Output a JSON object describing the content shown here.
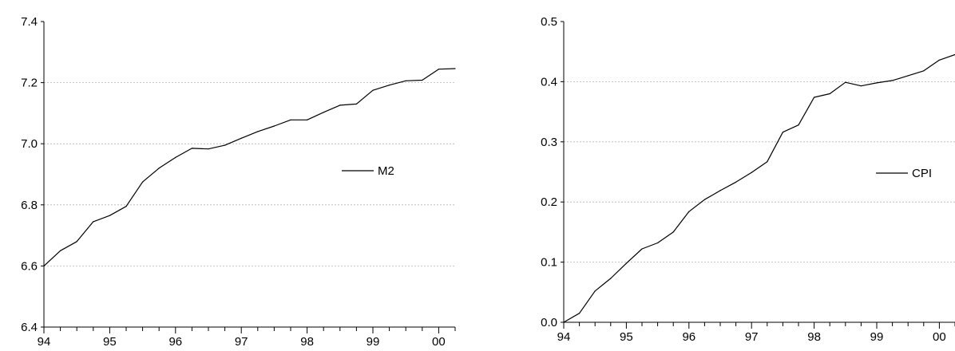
{
  "chart_data": [
    {
      "type": "line",
      "title": "",
      "xlabel": "",
      "ylabel": "",
      "x_ticks": [
        "94",
        "95",
        "96",
        "97",
        "98",
        "99",
        "00"
      ],
      "y_ticks": [
        "6.4",
        "6.6",
        "6.8",
        "7.0",
        "7.2",
        "7.4"
      ],
      "ylim": [
        6.4,
        7.4
      ],
      "xlim": [
        1994.0,
        2000.25
      ],
      "grid": "horizontal dashed",
      "legend_position": "center-right",
      "series": [
        {
          "name": "M2",
          "color": "#000000",
          "x": [
            1994.0,
            1994.25,
            1994.5,
            1994.75,
            1995.0,
            1995.25,
            1995.5,
            1995.75,
            1996.0,
            1996.25,
            1996.5,
            1996.75,
            1997.0,
            1997.25,
            1997.5,
            1997.75,
            1998.0,
            1998.25,
            1998.5,
            1998.75,
            1999.0,
            1999.25,
            1999.5,
            1999.75,
            2000.0,
            2000.25
          ],
          "values": [
            6.6,
            6.65,
            6.68,
            6.745,
            6.765,
            6.795,
            6.875,
            6.92,
            6.955,
            6.985,
            6.983,
            6.995,
            7.018,
            7.04,
            7.058,
            7.078,
            7.078,
            7.103,
            7.126,
            7.13,
            7.175,
            7.192,
            7.206,
            7.208,
            7.244,
            7.246
          ]
        }
      ]
    },
    {
      "type": "line",
      "title": "",
      "xlabel": "",
      "ylabel": "",
      "x_ticks": [
        "94",
        "95",
        "96",
        "97",
        "98",
        "99",
        "00"
      ],
      "y_ticks": [
        "0.0",
        "0.1",
        "0.2",
        "0.3",
        "0.4",
        "0.5"
      ],
      "ylim": [
        0.0,
        0.5
      ],
      "xlim": [
        1994.0,
        2000.25
      ],
      "grid": "horizontal dashed",
      "legend_position": "center-right",
      "series": [
        {
          "name": "CPI",
          "color": "#000000",
          "x": [
            1994.0,
            1994.25,
            1994.5,
            1994.75,
            1995.0,
            1995.25,
            1995.5,
            1995.75,
            1996.0,
            1996.25,
            1996.5,
            1996.75,
            1997.0,
            1997.25,
            1997.5,
            1997.75,
            1998.0,
            1998.25,
            1998.5,
            1998.75,
            1999.0,
            1999.25,
            1999.5,
            1999.75,
            2000.0,
            2000.25
          ],
          "values": [
            0.0,
            0.015,
            0.052,
            0.073,
            0.098,
            0.122,
            0.132,
            0.15,
            0.184,
            0.204,
            0.219,
            0.233,
            0.249,
            0.267,
            0.316,
            0.328,
            0.374,
            0.38,
            0.399,
            0.393,
            0.398,
            0.402,
            0.41,
            0.418,
            0.436,
            0.445
          ]
        }
      ]
    }
  ]
}
